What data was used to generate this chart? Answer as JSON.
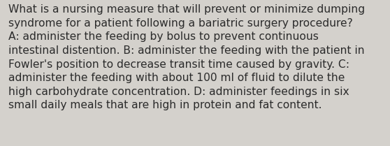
{
  "background_color": "#d4d1cc",
  "text_color": "#2b2b2b",
  "lines": [
    "What is a nursing measure that will prevent or minimize dumping",
    "syndrome for a patient following a bariatric surgery procedure?",
    "A: administer the feeding by bolus to prevent continuous",
    "intestinal distention. B: administer the feeding with the patient in",
    "Fowler's position to decrease transit time caused by gravity. C:",
    "administer the feeding with about 100 ml of fluid to dilute the",
    "high carbohydrate concentration. D: administer feedings in six",
    "small daily meals that are high in protein and fat content."
  ],
  "font_size": 11.2,
  "font_family": "DejaVu Sans",
  "figsize": [
    5.58,
    2.09
  ],
  "dpi": 100
}
